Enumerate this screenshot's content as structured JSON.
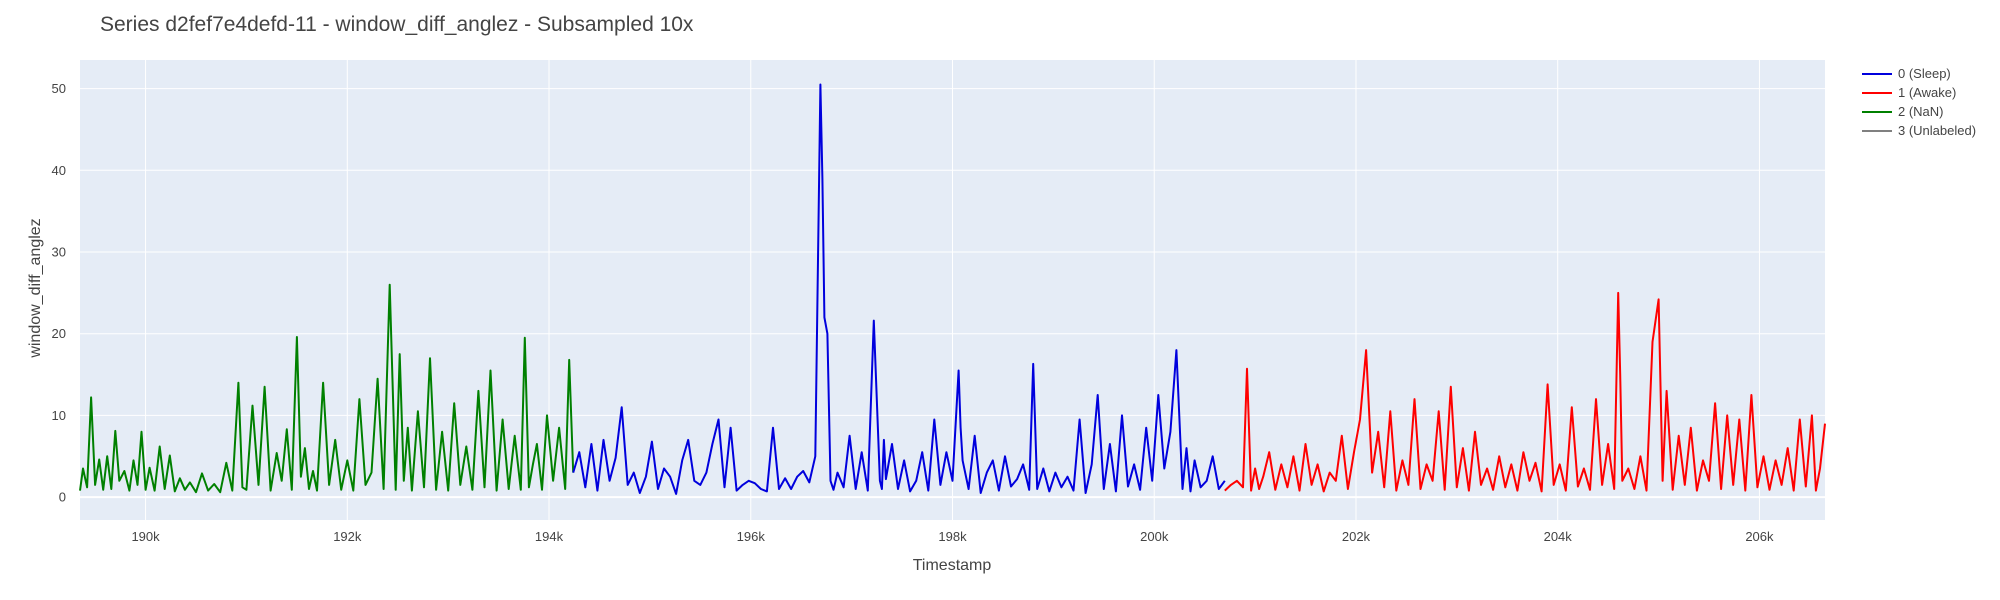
{
  "chart_data": {
    "type": "line",
    "title": "Series d2fef7e4defd-11 - window_diff_anglez - Subsampled 10x",
    "xlabel": "Timestamp",
    "ylabel": "window_diff_anglez",
    "xlim": [
      189350,
      206650
    ],
    "ylim": [
      -2.8,
      53.5
    ],
    "x_ticks": [
      190000,
      192000,
      194000,
      196000,
      198000,
      200000,
      202000,
      204000,
      206000
    ],
    "x_tick_labels": [
      "190k",
      "192k",
      "194k",
      "196k",
      "198k",
      "200k",
      "202k",
      "204k",
      "206k"
    ],
    "y_ticks": [
      0,
      10,
      20,
      30,
      40,
      50
    ],
    "y_tick_labels": [
      "0",
      "10",
      "20",
      "30",
      "40",
      "50"
    ],
    "grid": true,
    "legend_position": "right",
    "series": [
      {
        "name": "2 (NaN)",
        "color": "#008000",
        "x": [
          189350,
          189380,
          189420,
          189460,
          189500,
          189540,
          189580,
          189620,
          189660,
          189700,
          189740,
          189790,
          189840,
          189880,
          189920,
          189960,
          190000,
          190040,
          190090,
          190140,
          190190,
          190240,
          190290,
          190340,
          190390,
          190440,
          190500,
          190560,
          190620,
          190680,
          190740,
          190800,
          190860,
          190920,
          190960,
          191000,
          191060,
          191120,
          191180,
          191240,
          191300,
          191350,
          191400,
          191450,
          191500,
          191540,
          191580,
          191620,
          191660,
          191700,
          191760,
          191820,
          191880,
          191940,
          192000,
          192060,
          192120,
          192180,
          192240,
          192300,
          192360,
          192420,
          192480,
          192520,
          192560,
          192600,
          192640,
          192700,
          192760,
          192820,
          192880,
          192940,
          193000,
          193060,
          193120,
          193180,
          193240,
          193300,
          193360,
          193420,
          193480,
          193540,
          193600,
          193660,
          193720,
          193760,
          193800,
          193840,
          193880,
          193930,
          193980,
          194040,
          194100,
          194160,
          194200,
          194240
        ],
        "y": [
          0.8,
          3.5,
          1.2,
          12.2,
          1.5,
          4.6,
          0.9,
          5.0,
          1.0,
          8.1,
          2.0,
          3.2,
          0.8,
          4.5,
          1.5,
          8.0,
          0.9,
          3.6,
          0.8,
          6.2,
          1.0,
          5.1,
          0.7,
          2.3,
          0.9,
          1.8,
          0.6,
          2.9,
          0.8,
          1.6,
          0.6,
          4.2,
          0.8,
          14.0,
          1.2,
          0.9,
          11.2,
          1.5,
          13.5,
          0.8,
          5.4,
          2.0,
          8.3,
          0.9,
          19.6,
          2.5,
          6.0,
          1.0,
          3.2,
          0.8,
          14.0,
          1.5,
          7.0,
          0.9,
          4.5,
          0.8,
          12.0,
          1.5,
          3.0,
          14.5,
          1.0,
          26.0,
          0.9,
          17.5,
          2.0,
          8.5,
          0.8,
          10.5,
          1.2,
          17.0,
          0.9,
          8.0,
          0.8,
          11.5,
          1.5,
          6.2,
          0.9,
          13.0,
          1.2,
          15.5,
          0.8,
          9.5,
          1.0,
          7.5,
          0.9,
          19.5,
          1.2,
          4.0,
          6.5,
          0.9,
          10.0,
          2.0,
          8.5,
          1.0,
          16.8,
          3.0
        ]
      },
      {
        "name": "0 (Sleep)",
        "color": "#0000dd",
        "x": [
          194240,
          194300,
          194360,
          194420,
          194480,
          194540,
          194600,
          194660,
          194720,
          194780,
          194840,
          194900,
          194960,
          195020,
          195080,
          195140,
          195200,
          195260,
          195320,
          195380,
          195440,
          195500,
          195560,
          195620,
          195680,
          195740,
          195800,
          195860,
          195920,
          195980,
          196040,
          196100,
          196160,
          196220,
          196280,
          196340,
          196400,
          196460,
          196520,
          196580,
          196640,
          196690,
          196710,
          196730,
          196760,
          196790,
          196820,
          196860,
          196920,
          196980,
          197040,
          197100,
          197160,
          197220,
          197280,
          197300,
          197320,
          197340,
          197400,
          197460,
          197520,
          197580,
          197640,
          197700,
          197760,
          197820,
          197880,
          197940,
          198000,
          198060,
          198080,
          198100,
          198160,
          198220,
          198280,
          198340,
          198400,
          198460,
          198520,
          198580,
          198640,
          198700,
          198760,
          198800,
          198840,
          198900,
          198960,
          199020,
          199080,
          199140,
          199200,
          199260,
          199320,
          199380,
          199440,
          199500,
          199560,
          199620,
          199680,
          199740,
          199800,
          199860,
          199920,
          199980,
          200040,
          200100,
          200160,
          200220,
          200280,
          200320,
          200360,
          200400,
          200460,
          200520,
          200580,
          200640,
          200700
        ],
        "y": [
          3.0,
          5.5,
          1.2,
          6.5,
          0.8,
          7.0,
          2.0,
          4.8,
          11.0,
          1.5,
          3.0,
          0.5,
          2.5,
          6.8,
          1.0,
          3.5,
          2.5,
          0.4,
          4.5,
          7.0,
          2.0,
          1.5,
          3.0,
          6.5,
          9.5,
          1.2,
          8.5,
          0.8,
          1.5,
          2.0,
          1.7,
          1.0,
          0.7,
          8.5,
          1.0,
          2.3,
          1.0,
          2.5,
          3.2,
          1.8,
          5.0,
          50.5,
          39.0,
          22.0,
          20.0,
          2.0,
          0.9,
          3.0,
          1.2,
          7.5,
          1.0,
          5.5,
          0.8,
          21.6,
          2.0,
          1.0,
          7.0,
          2.2,
          6.5,
          1.0,
          4.5,
          0.7,
          2.0,
          5.5,
          0.8,
          9.5,
          1.5,
          5.5,
          2.0,
          15.5,
          8.5,
          4.5,
          1.0,
          7.5,
          0.5,
          3.0,
          4.5,
          0.8,
          5.0,
          1.3,
          2.2,
          4.0,
          0.9,
          16.3,
          1.0,
          3.5,
          0.7,
          3.0,
          1.2,
          2.5,
          0.8,
          9.5,
          0.5,
          4.0,
          12.5,
          1.0,
          6.5,
          0.7,
          10.0,
          1.3,
          4.0,
          0.9,
          8.5,
          2.0,
          12.5,
          3.5,
          8.0,
          18.0,
          1.0,
          6.0,
          0.7,
          4.5,
          1.2,
          2.0,
          5.0,
          1.0,
          2.0
        ]
      },
      {
        "name": "1 (Awake)",
        "color": "#ff0000",
        "x": [
          200700,
          200760,
          200820,
          200880,
          200920,
          200960,
          201000,
          201040,
          201080,
          201140,
          201200,
          201260,
          201320,
          201380,
          201440,
          201500,
          201560,
          201620,
          201680,
          201740,
          201800,
          201860,
          201920,
          201980,
          202040,
          202100,
          202160,
          202220,
          202280,
          202340,
          202400,
          202460,
          202520,
          202580,
          202640,
          202700,
          202760,
          202820,
          202880,
          202940,
          203000,
          203060,
          203120,
          203180,
          203240,
          203300,
          203360,
          203420,
          203480,
          203540,
          203600,
          203660,
          203720,
          203780,
          203840,
          203900,
          203960,
          204020,
          204080,
          204140,
          204200,
          204260,
          204320,
          204380,
          204440,
          204500,
          204560,
          204600,
          204620,
          204640,
          204700,
          204760,
          204820,
          204880,
          204940,
          205000,
          205040,
          205080,
          205140,
          205200,
          205260,
          205320,
          205380,
          205440,
          205500,
          205560,
          205620,
          205680,
          205740,
          205800,
          205860,
          205920,
          205980,
          206040,
          206100,
          206160,
          206220,
          206280,
          206340,
          206400,
          206460,
          206520,
          206560,
          206600,
          206650
        ],
        "y": [
          0.8,
          1.5,
          2.0,
          1.2,
          15.7,
          0.8,
          3.5,
          1.0,
          2.5,
          5.5,
          0.9,
          4.0,
          1.2,
          5.0,
          0.8,
          6.5,
          1.5,
          4.0,
          0.7,
          3.0,
          2.0,
          7.5,
          1.0,
          5.5,
          9.5,
          18.0,
          3.0,
          8.0,
          1.2,
          10.5,
          0.8,
          4.5,
          1.5,
          12.0,
          1.0,
          4.0,
          2.0,
          10.5,
          0.9,
          13.5,
          1.2,
          6.0,
          0.8,
          8.0,
          1.5,
          3.5,
          0.9,
          5.0,
          1.2,
          4.0,
          0.8,
          5.5,
          2.0,
          4.2,
          0.7,
          13.8,
          1.5,
          4.0,
          0.8,
          11.0,
          1.3,
          3.5,
          0.9,
          12.0,
          1.5,
          6.5,
          1.0,
          25.0,
          15.0,
          2.0,
          3.5,
          1.0,
          5.0,
          0.8,
          19.0,
          24.2,
          2.0,
          13.0,
          0.9,
          7.5,
          1.5,
          8.5,
          0.8,
          4.5,
          2.0,
          11.5,
          1.0,
          10.0,
          1.5,
          9.5,
          0.8,
          12.5,
          1.2,
          5.0,
          0.9,
          4.5,
          1.5,
          6.0,
          0.8,
          9.5,
          1.3,
          10.0,
          0.8,
          3.5,
          9.0
        ]
      },
      {
        "name": "3 (Unlabeled)",
        "color": "#808080",
        "x": [],
        "y": []
      }
    ]
  }
}
